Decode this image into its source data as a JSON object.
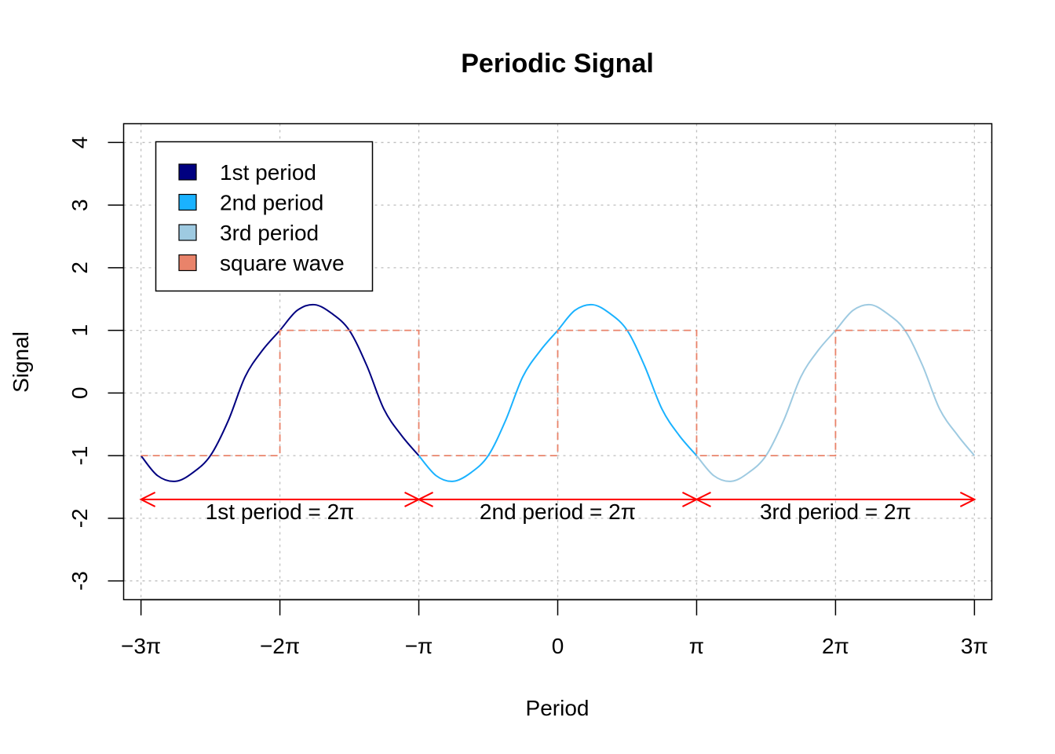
{
  "chart_data": {
    "type": "line",
    "title": "Periodic Signal",
    "xlabel": "Period",
    "ylabel": "Signal",
    "xlim": [
      -9.8175,
      9.8175
    ],
    "ylim": [
      -3.3,
      4.3
    ],
    "grid": true,
    "x_ticks": [
      {
        "value": -9.42478,
        "label": "−3π"
      },
      {
        "value": -6.28319,
        "label": "−2π"
      },
      {
        "value": -3.14159,
        "label": "−π"
      },
      {
        "value": 0,
        "label": "0"
      },
      {
        "value": 3.14159,
        "label": "π"
      },
      {
        "value": 6.28319,
        "label": "2π"
      },
      {
        "value": 9.42478,
        "label": "3π"
      }
    ],
    "y_ticks": [
      {
        "value": -3,
        "label": "-3"
      },
      {
        "value": -2,
        "label": "-2"
      },
      {
        "value": -1,
        "label": "-1"
      },
      {
        "value": 0,
        "label": "0"
      },
      {
        "value": 1,
        "label": "1"
      },
      {
        "value": 2,
        "label": "2"
      },
      {
        "value": 3,
        "label": "3"
      },
      {
        "value": 4,
        "label": "4"
      }
    ],
    "series": [
      {
        "name": "1st period",
        "color": "#000080",
        "x": [
          -9.42478,
          -9.05,
          -8.64,
          -8.25,
          -7.85398,
          -7.45,
          -7.07,
          -6.68,
          -6.28319,
          -5.89,
          -5.5,
          -5.11,
          -4.71239,
          -4.32,
          -3.93,
          -3.53,
          -3.14159
        ],
        "y": [
          -1.0,
          -1.32,
          -1.41,
          -1.27,
          -1.0,
          -0.44,
          0.26,
          0.68,
          1.0,
          1.32,
          1.41,
          1.27,
          1.0,
          0.44,
          -0.26,
          -0.68,
          -1.0
        ]
      },
      {
        "name": "2nd period",
        "color": "#1AB2FF",
        "x": [
          -3.14159,
          -2.75,
          -2.36,
          -1.96,
          -1.5708,
          -1.18,
          -0.79,
          -0.39,
          0,
          0.39,
          0.79,
          1.18,
          1.5708,
          1.96,
          2.36,
          2.75,
          3.14159
        ],
        "y": [
          -1.0,
          -1.32,
          -1.41,
          -1.27,
          -1.0,
          -0.44,
          0.26,
          0.68,
          1.0,
          1.32,
          1.41,
          1.27,
          1.0,
          0.44,
          -0.26,
          -0.68,
          -1.0
        ]
      },
      {
        "name": "3rd period",
        "color": "#9ECAE1",
        "x": [
          3.14159,
          3.53,
          3.93,
          4.32,
          4.71239,
          5.11,
          5.5,
          5.89,
          6.28319,
          6.68,
          7.07,
          7.45,
          7.85398,
          8.25,
          8.64,
          9.05,
          9.42478
        ],
        "y": [
          -1.0,
          -1.32,
          -1.41,
          -1.27,
          -1.0,
          -0.44,
          0.26,
          0.68,
          1.0,
          1.32,
          1.41,
          1.27,
          1.0,
          0.44,
          -0.26,
          -0.68,
          -1.0
        ]
      },
      {
        "name": "square wave",
        "color": "#E9836A",
        "style": "dashed",
        "x": [
          -9.42478,
          -6.28319,
          -6.28319,
          -3.14159,
          -3.14159,
          0,
          0,
          3.14159,
          3.14159,
          6.28319,
          6.28319,
          9.42478
        ],
        "y": [
          -1,
          -1,
          1,
          1,
          -1,
          -1,
          1,
          1,
          -1,
          -1,
          1,
          1
        ]
      }
    ],
    "legend": {
      "position": "top-left",
      "entries": [
        "1st period",
        "2nd period",
        "3rd period",
        "square wave"
      ]
    },
    "annotations": [
      {
        "x_from": -9.42478,
        "x_to": -3.14159,
        "y": -1.7,
        "label": "1st period = 2π"
      },
      {
        "x_from": -3.14159,
        "x_to": 3.14159,
        "y": -1.7,
        "label": "2nd period = 2π"
      },
      {
        "x_from": 3.14159,
        "x_to": 9.42478,
        "y": -1.7,
        "label": "3rd period = 2π"
      }
    ],
    "annotation_color": "#FF0000",
    "grid_color": "#BEBEBE"
  }
}
